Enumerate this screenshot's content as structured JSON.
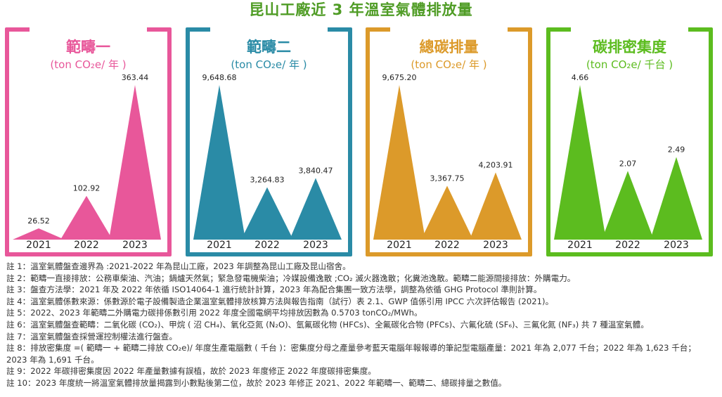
{
  "title": "昆山工廠近 3 年溫室氣體排放量",
  "chart_data": [
    {
      "type": "bar",
      "title": "範疇一",
      "unit": "(ton CO₂e/ 年 )",
      "color": "#e8579a",
      "categories": [
        "2021",
        "2022",
        "2023"
      ],
      "values": [
        26.52,
        102.92,
        363.44
      ],
      "labels": [
        "26.52",
        "102.92",
        "363.44"
      ]
    },
    {
      "type": "bar",
      "title": "範疇二",
      "unit": "(ton CO₂e/ 年 )",
      "color": "#2a8ba6",
      "categories": [
        "2021",
        "2022",
        "2023"
      ],
      "values": [
        9648.68,
        3264.83,
        3840.47
      ],
      "labels": [
        "9,648.68",
        "3,264.83",
        "3,840.47"
      ]
    },
    {
      "type": "bar",
      "title": "總碳排量",
      "unit": "(ton CO₂e/ 年 )",
      "color": "#dc9a2a",
      "categories": [
        "2021",
        "2022",
        "2023"
      ],
      "values": [
        9675.2,
        3367.75,
        4203.91
      ],
      "labels": [
        "9,675.20",
        "3,367.75",
        "4,203.91"
      ]
    },
    {
      "type": "bar",
      "title": "碳排密集度",
      "unit": "(ton CO₂e/ 千台 )",
      "color": "#5cbc1f",
      "categories": [
        "2021",
        "2022",
        "2023"
      ],
      "values": [
        4.66,
        2.07,
        2.49
      ],
      "labels": [
        "4.66",
        "2.07",
        "2.49"
      ]
    }
  ],
  "footnotes": [
    {
      "key": "註 1：",
      "text": "溫室氣體盤查邊界為 :2021-2022 年為昆山工廠，2023 年調整為昆山工廠及昆山宿舍。"
    },
    {
      "key": "註 2：",
      "text": "範疇一直接排放：公務車柴油、汽油；鍋爐天然氣；緊急發電機柴油；冷媒設備逸散 ;CO₂ 滅火器逸散；化糞池逸散。範疇二能源間接排放：外購電力。"
    },
    {
      "key": "註 3：",
      "text": "盤查方法學：2021 年及 2022 年依循 ISO14064-1 進行統計計算，2023 年為配合集團一致方法學，調整為依循 GHG Protocol 準則計算。"
    },
    {
      "key": "註 4：",
      "text": "溫室氣體係數來源：係數源於電子設備製造企業溫室氣體排放核算方法與報告指南（試行）表 2.1、GWP 值係引用 IPCC 六次評估報告 (2021)。"
    },
    {
      "key": "註 5：",
      "text": "2022、2023 年範疇二外購電力碳排係數引用 2022 年度全國電網平均排放因數為 0.5703 tonCO₂/MWh。"
    },
    {
      "key": "註 6：",
      "text": "溫室氣體盤查範疇：二氧化碳 (CO₂)、甲烷 ( 沼 CH₄)、氧化亞氮 (N₂O)、氫氟碳化物 (HFCs)、全氟碳化合物 (PFCs)、六氟化硫 (SF₆)、三氟化氮 (NF₃) 共 7 種溫室氣體。"
    },
    {
      "key": "註 7：",
      "text": "溫室氣體盤查採營運控制權法進行盤查。"
    },
    {
      "key": "註 8：",
      "text": "排放密集度 =( 範疇一 + 範疇二排放 CO₂e)/ 年度生產電腦數 ( 千台 )：密集度分母之產量參考藍天電腦年報報導的筆記型電腦產量：2021 年為 2,077 千台；2022 年為 1,623 千台；2023 年為 1,691 千台。"
    },
    {
      "key": "註 9：",
      "text": "2022 年碳排密集度因 2022 年產量數據有誤植，故於 2023 年度修正 2022 年度碳排密集度。"
    },
    {
      "key": "註 10：",
      "text": "2023 年度統一將溫室氣體排放量揭露到小數點後第二位，故於 2023 年修正 2021、2022 年範疇一、範疇二、總碳排量之數值。"
    }
  ]
}
